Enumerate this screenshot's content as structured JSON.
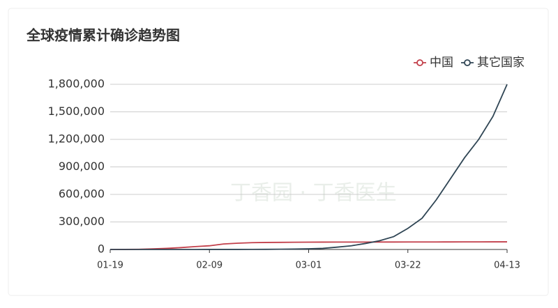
{
  "chart_data": {
    "type": "line",
    "title": "全球疫情累计确诊趋势图",
    "watermark": "丁香园 · 丁香医生",
    "categories": [
      "01-19",
      null,
      null,
      null,
      null,
      null,
      null,
      "02-09",
      null,
      null,
      null,
      null,
      null,
      null,
      "03-01",
      null,
      null,
      null,
      null,
      null,
      null,
      "03-22",
      null,
      null,
      null,
      null,
      null,
      null,
      "04-13"
    ],
    "series": [
      {
        "name": "中国",
        "color": "#c23f4a",
        "values": [
          200,
          570,
          2000,
          6000,
          11800,
          20400,
          31200,
          40200,
          60000,
          68500,
          74200,
          76300,
          77300,
          78600,
          79900,
          80300,
          80700,
          80800,
          80900,
          81000,
          81200,
          81400,
          81700,
          81900,
          82300,
          82500,
          82700,
          82900,
          83200
        ]
      },
      {
        "name": "其它国家",
        "color": "#2f4554",
        "values": [
          0,
          0,
          20,
          60,
          130,
          180,
          250,
          320,
          400,
          560,
          900,
          1500,
          2900,
          4700,
          7000,
          12000,
          25000,
          40000,
          65000,
          95000,
          140000,
          230000,
          340000,
          540000,
          770000,
          1000000,
          1200000,
          1450000,
          1800000
        ]
      }
    ],
    "ylim": [
      0,
      1800000
    ],
    "yticks": [
      0,
      {
        "value": 300000,
        "label": "300,000"
      },
      {
        "value": 600000,
        "label": "600,000"
      },
      {
        "value": 900000,
        "label": "900,000"
      },
      {
        "value": 1200000,
        "label": "1,200,000"
      },
      {
        "value": 1500000,
        "label": "1,500,000"
      },
      {
        "value": 1800000,
        "label": "1,800,000"
      }
    ],
    "grid": true,
    "legend": "top-right"
  }
}
